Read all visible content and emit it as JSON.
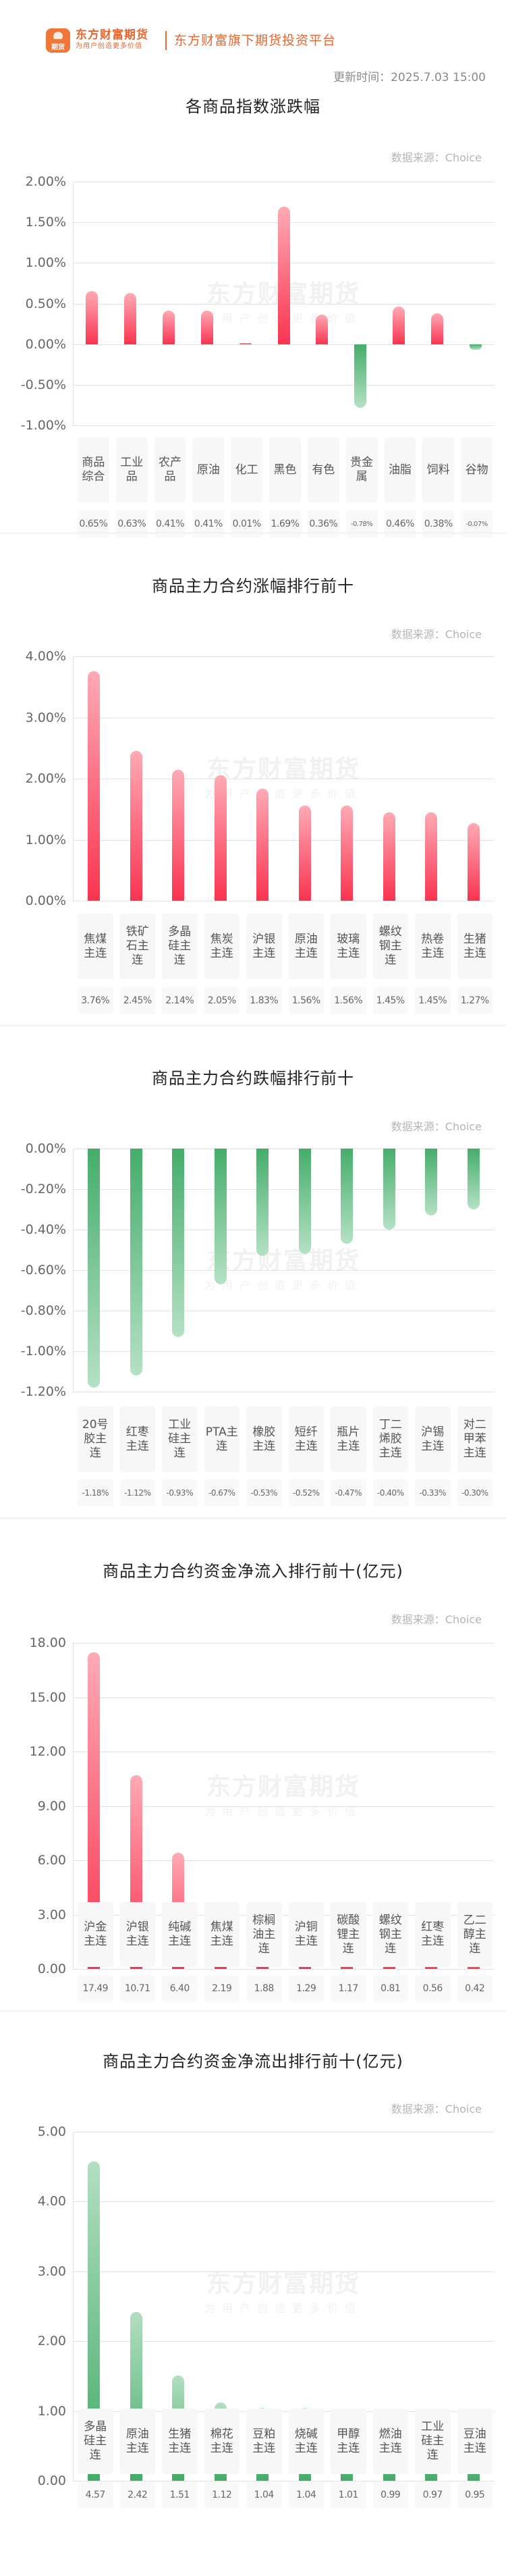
{
  "header": {
    "logo_text": "期货",
    "brand_name": "东方财富期货",
    "brand_slogan": "为用户创造更多价值",
    "platform": "东方财富旗下期货投资平台",
    "update_time": "更新时间：2025.7.03 15:00"
  },
  "watermark": {
    "main": "东方财富期货",
    "sub": "为用户创造更多价值"
  },
  "colors": {
    "up": "#f93450",
    "up_light": "#ffaab5",
    "down": "#45ad6a",
    "down_light": "#b5e1c5",
    "brand": "#e8652e"
  },
  "sections": [
    {
      "title": "各商品指数涨跌幅",
      "source": "数据来源：Choice",
      "ticks": [
        "2.00%",
        "1.50%",
        "1.00%",
        "0.50%",
        "0.00%",
        "-0.50%",
        "-1.00%"
      ],
      "categories": [
        "商品综合",
        "工业品",
        "农产品",
        "原油",
        "化工",
        "黑色",
        "有色",
        "贵金属",
        "油脂",
        "饲料",
        "谷物"
      ],
      "values": [
        "0.65%",
        "0.63%",
        "0.41%",
        "0.41%",
        "0.01%",
        "1.69%",
        "0.36%",
        "-0.78%",
        "0.46%",
        "0.38%",
        "-0.07%"
      ]
    },
    {
      "title": "商品主力合约涨幅排行前十",
      "source": "数据来源：Choice",
      "ticks": [
        "4.00%",
        "3.00%",
        "2.00%",
        "1.00%",
        "0.00%"
      ],
      "categories": [
        "焦煤主连",
        "铁矿石主连",
        "多晶硅主连",
        "焦炭主连",
        "沪银主连",
        "原油主连",
        "玻璃主连",
        "螺纹钢主连",
        "热卷主连",
        "生猪主连"
      ],
      "values": [
        "3.76%",
        "2.45%",
        "2.14%",
        "2.05%",
        "1.83%",
        "1.56%",
        "1.56%",
        "1.45%",
        "1.45%",
        "1.27%"
      ]
    },
    {
      "title": "商品主力合约跌幅排行前十",
      "source": "数据来源：Choice",
      "ticks": [
        "0.00%",
        "-0.20%",
        "-0.40%",
        "-0.60%",
        "-0.80%",
        "-1.00%",
        "-1.20%"
      ],
      "categories": [
        "20号胶主连",
        "红枣主连",
        "工业硅主连",
        "PTA主连",
        "橡胶主连",
        "短纤主连",
        "瓶片主连",
        "丁二烯胶主连",
        "沪锡主连",
        "对二甲苯主连"
      ],
      "values": [
        "-1.18%",
        "-1.12%",
        "-0.93%",
        "-0.67%",
        "-0.53%",
        "-0.52%",
        "-0.47%",
        "-0.40%",
        "-0.33%",
        "-0.30%"
      ]
    },
    {
      "title": "商品主力合约资金净流入排行前十(亿元)",
      "source": "数据来源：Choice",
      "ticks": [
        "18.00",
        "15.00",
        "12.00",
        "9.00",
        "6.00",
        "3.00",
        "0.00"
      ],
      "categories": [
        "沪金主连",
        "沪银主连",
        "纯碱主连",
        "焦煤主连",
        "棕榈油主连",
        "沪铜主连",
        "碳酸锂主连",
        "螺纹钢主连",
        "红枣主连",
        "乙二醇主连"
      ],
      "values": [
        "17.49",
        "10.71",
        "6.40",
        "2.19",
        "1.88",
        "1.29",
        "1.17",
        "0.81",
        "0.56",
        "0.42"
      ]
    },
    {
      "title": "商品主力合约资金净流出排行前十(亿元)",
      "source": "数据来源：Choice",
      "ticks": [
        "5.00",
        "4.00",
        "3.00",
        "2.00",
        "1.00",
        "0.00"
      ],
      "categories": [
        "多晶硅主连",
        "原油主连",
        "生猪主连",
        "棉花主连",
        "豆粕主连",
        "烧碱主连",
        "甲醇主连",
        "燃油主连",
        "工业硅主连",
        "豆油主连"
      ],
      "values": [
        "4.57",
        "2.42",
        "1.51",
        "1.12",
        "1.04",
        "1.04",
        "1.01",
        "0.99",
        "0.97",
        "0.95"
      ]
    }
  ],
  "chart_data": [
    {
      "type": "bar",
      "title": "各商品指数涨跌幅",
      "xlabel": "",
      "ylabel": "",
      "ylim": [
        -1.0,
        2.0
      ],
      "grid": true,
      "unit": "%",
      "categories": [
        "商品综合",
        "工业品",
        "农产品",
        "原油",
        "化工",
        "黑色",
        "有色",
        "贵金属",
        "油脂",
        "饲料",
        "谷物"
      ],
      "values": [
        0.65,
        0.63,
        0.41,
        0.41,
        0.01,
        1.69,
        0.36,
        -0.78,
        0.46,
        0.38,
        -0.07
      ]
    },
    {
      "type": "bar",
      "title": "商品主力合约涨幅排行前十",
      "xlabel": "",
      "ylabel": "",
      "ylim": [
        0,
        4.0
      ],
      "grid": true,
      "unit": "%",
      "categories": [
        "焦煤主连",
        "铁矿石主连",
        "多晶硅主连",
        "焦炭主连",
        "沪银主连",
        "原油主连",
        "玻璃主连",
        "螺纹钢主连",
        "热卷主连",
        "生猪主连"
      ],
      "values": [
        3.76,
        2.45,
        2.14,
        2.05,
        1.83,
        1.56,
        1.56,
        1.45,
        1.45,
        1.27
      ]
    },
    {
      "type": "bar",
      "title": "商品主力合约跌幅排行前十",
      "xlabel": "",
      "ylabel": "",
      "ylim": [
        -1.2,
        0
      ],
      "grid": true,
      "unit": "%",
      "categories": [
        "20号胶主连",
        "红枣主连",
        "工业硅主连",
        "PTA主连",
        "橡胶主连",
        "短纤主连",
        "瓶片主连",
        "丁二烯胶主连",
        "沪锡主连",
        "对二甲苯主连"
      ],
      "values": [
        -1.18,
        -1.12,
        -0.93,
        -0.67,
        -0.53,
        -0.52,
        -0.47,
        -0.4,
        -0.33,
        -0.3
      ]
    },
    {
      "type": "bar",
      "title": "商品主力合约资金净流入排行前十(亿元)",
      "xlabel": "",
      "ylabel": "",
      "ylim": [
        0,
        18
      ],
      "grid": true,
      "categories": [
        "沪金主连",
        "沪银主连",
        "纯碱主连",
        "焦煤主连",
        "棕榈油主连",
        "沪铜主连",
        "碳酸锂主连",
        "螺纹钢主连",
        "红枣主连",
        "乙二醇主连"
      ],
      "values": [
        17.49,
        10.71,
        6.4,
        2.19,
        1.88,
        1.29,
        1.17,
        0.81,
        0.56,
        0.42
      ]
    },
    {
      "type": "bar",
      "title": "商品主力合约资金净流出排行前十(亿元)",
      "xlabel": "",
      "ylabel": "",
      "ylim": [
        0,
        5
      ],
      "grid": true,
      "categories": [
        "多晶硅主连",
        "原油主连",
        "生猪主连",
        "棉花主连",
        "豆粕主连",
        "烧碱主连",
        "甲醇主连",
        "燃油主连",
        "工业硅主连",
        "豆油主连"
      ],
      "values": [
        4.57,
        2.42,
        1.51,
        1.12,
        1.04,
        1.04,
        1.01,
        0.99,
        0.97,
        0.95
      ]
    }
  ]
}
